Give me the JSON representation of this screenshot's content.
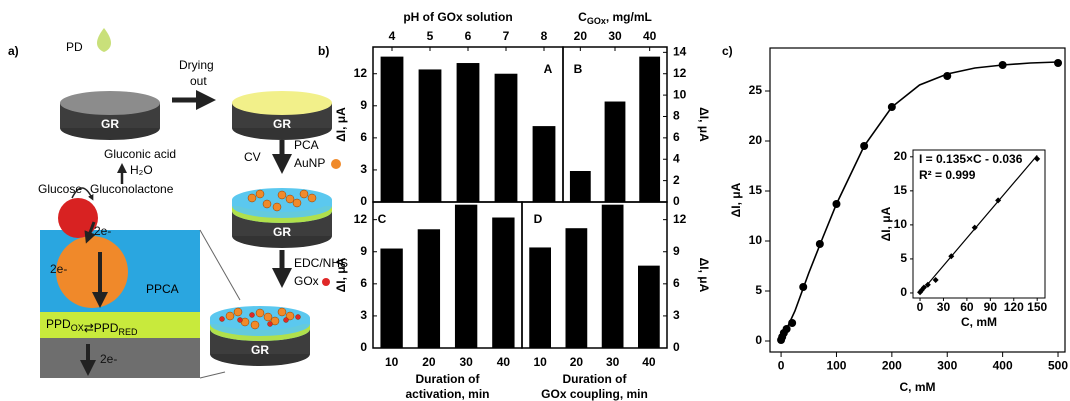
{
  "scheme": {
    "panel_label": "a)",
    "pd": "PD",
    "gr": [
      "GR",
      "GR",
      "GR",
      "GR"
    ],
    "drying": [
      "Drying",
      "out"
    ],
    "cv": "CV",
    "pca": "PCA",
    "aunp": "AuNP",
    "edc": "EDC/NHS",
    "gox": "GOx",
    "gluconic": "Gluconic acid",
    "h2o": "H₂O",
    "glucose": "Glucose",
    "gluconolactone": "Gluconolactone",
    "electron": [
      "2e-",
      "2e-",
      "2e-"
    ],
    "ppca": "PPCA",
    "ppd": [
      {
        "text": "PPD",
        "sub": "OX"
      },
      "⇄",
      {
        "text": "PPD",
        "sub": "RED"
      }
    ]
  },
  "panel_labels": [
    "b)",
    "c)"
  ],
  "chart_data": [
    {
      "type": "bar",
      "title": "A",
      "x_label": "pH of GOx solution",
      "categories": [
        "4",
        "5",
        "6",
        "7",
        "8"
      ],
      "values": [
        13.6,
        12.4,
        13.0,
        12.0,
        7.1
      ],
      "color": "#000000",
      "ylim": [
        0,
        14.5
      ],
      "yticks": [
        0,
        3,
        6,
        9,
        12
      ],
      "y_label": "ΔI, μA"
    },
    {
      "type": "bar",
      "title": "B",
      "x_label": {
        "text": "C",
        "sub": "GOx",
        "rest": ", mg/mL"
      },
      "categories": [
        "20",
        "30",
        "40"
      ],
      "values": [
        2.9,
        9.4,
        13.6
      ],
      "color": "#000000",
      "ylim": [
        0,
        14.5
      ],
      "y2lim": [
        0,
        14.5
      ],
      "y2ticks": [
        0,
        2,
        4,
        6,
        8,
        10,
        12,
        14
      ],
      "y2_label": "ΔI, μA"
    },
    {
      "type": "bar",
      "title": "C",
      "x_label": [
        "Duration of",
        "activation, min"
      ],
      "categories": [
        "10",
        "20",
        "30",
        "40"
      ],
      "values": [
        9.3,
        11.1,
        13.4,
        12.2
      ],
      "color": "#000000",
      "ylim": [
        0,
        13.65
      ],
      "yticks": [
        0,
        3,
        6,
        9,
        12
      ],
      "y_label": "ΔI, μA"
    },
    {
      "type": "bar",
      "title": "D",
      "x_label": [
        "Duration of",
        "GOx coupling, min"
      ],
      "categories": [
        "10",
        "20",
        "30",
        "40"
      ],
      "values": [
        9.4,
        11.2,
        13.4,
        7.7
      ],
      "color": "#000000",
      "ylim": [
        0,
        13.65
      ],
      "y2lim": [
        0,
        13.65
      ],
      "y2ticks": [
        0,
        3,
        6,
        9,
        12
      ],
      "y2_label": "ΔI, μA"
    },
    {
      "type": "scatter",
      "x_label": "C, mM",
      "y_label": "ΔI, μA",
      "xlim": [
        -20,
        512.6
      ],
      "ylim": [
        -1.1,
        29.3
      ],
      "xticks": [
        0,
        100,
        200,
        300,
        400,
        500
      ],
      "yticks": [
        0,
        5,
        10,
        15,
        20,
        25
      ],
      "series": [
        {
          "marker": "circle",
          "color": "#000000",
          "x": [
            0,
            2,
            5,
            10,
            20,
            40,
            70,
            100,
            150,
            200,
            300,
            400,
            500
          ],
          "values": [
            0.1,
            0.4,
            0.8,
            1.2,
            1.8,
            5.4,
            9.7,
            13.7,
            19.5,
            23.4,
            26.5,
            27.6,
            27.8
          ]
        },
        {
          "marker": "line",
          "color": "#000000",
          "x": [
            0,
            25,
            50,
            75,
            100,
            150,
            200,
            250,
            300,
            350,
            400,
            450,
            500
          ],
          "values": [
            0,
            3,
            6.8,
            10.3,
            13.7,
            19.5,
            23.4,
            25.6,
            26.7,
            27.3,
            27.6,
            27.8,
            27.9
          ]
        }
      ]
    },
    {
      "type": "scatter",
      "annotations": [
        "I = 0.135×C - 0.036",
        "R² = 0.999"
      ],
      "x_label": "C, mM",
      "y_label": "ΔI, μA",
      "xlim": [
        -9,
        160
      ],
      "ylim": [
        -0.74,
        21
      ],
      "xticks": [
        0,
        30,
        60,
        90,
        120,
        150
      ],
      "yticks": [
        0,
        5,
        10,
        15,
        20
      ],
      "series": [
        {
          "marker": "diamond",
          "color": "#000000",
          "x": [
            0,
            2,
            5,
            10,
            20,
            40,
            70,
            100,
            150
          ],
          "values": [
            0.1,
            0.4,
            0.8,
            1.2,
            1.9,
            5.4,
            9.6,
            13.6,
            19.7
          ]
        },
        {
          "marker": "line",
          "color": "#000000",
          "x": [
            0,
            150
          ],
          "values": [
            -0.036,
            20.214
          ]
        }
      ]
    }
  ]
}
